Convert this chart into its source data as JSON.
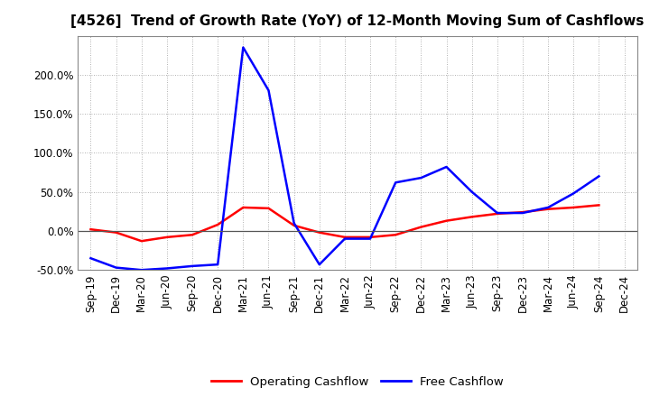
{
  "title": "[4526]  Trend of Growth Rate (YoY) of 12-Month Moving Sum of Cashflows",
  "x_labels": [
    "Sep-19",
    "Dec-19",
    "Mar-20",
    "Jun-20",
    "Sep-20",
    "Dec-20",
    "Mar-21",
    "Jun-21",
    "Sep-21",
    "Dec-21",
    "Mar-22",
    "Jun-22",
    "Sep-22",
    "Dec-22",
    "Mar-23",
    "Jun-23",
    "Sep-23",
    "Dec-23",
    "Mar-24",
    "Jun-24",
    "Sep-24",
    "Dec-24"
  ],
  "operating_cashflow": [
    2,
    -2,
    -13,
    -8,
    -5,
    8,
    30,
    29,
    7,
    -2,
    -8,
    -8,
    -5,
    5,
    13,
    18,
    22,
    24,
    28,
    30,
    33,
    null
  ],
  "free_cashflow": [
    -35,
    -47,
    -50,
    -48,
    -45,
    -43,
    235,
    180,
    10,
    -43,
    -10,
    -10,
    62,
    68,
    82,
    50,
    23,
    23,
    30,
    48,
    70,
    null
  ],
  "operating_color": "#ff0000",
  "free_color": "#0000ff",
  "ylim": [
    -50,
    250
  ],
  "yticks": [
    -50,
    0,
    50,
    100,
    150,
    200
  ],
  "background_color": "#ffffff",
  "grid_color": "#999999",
  "legend_labels": [
    "Operating Cashflow",
    "Free Cashflow"
  ],
  "line_width": 1.8,
  "title_fontsize": 11,
  "tick_fontsize": 8.5
}
